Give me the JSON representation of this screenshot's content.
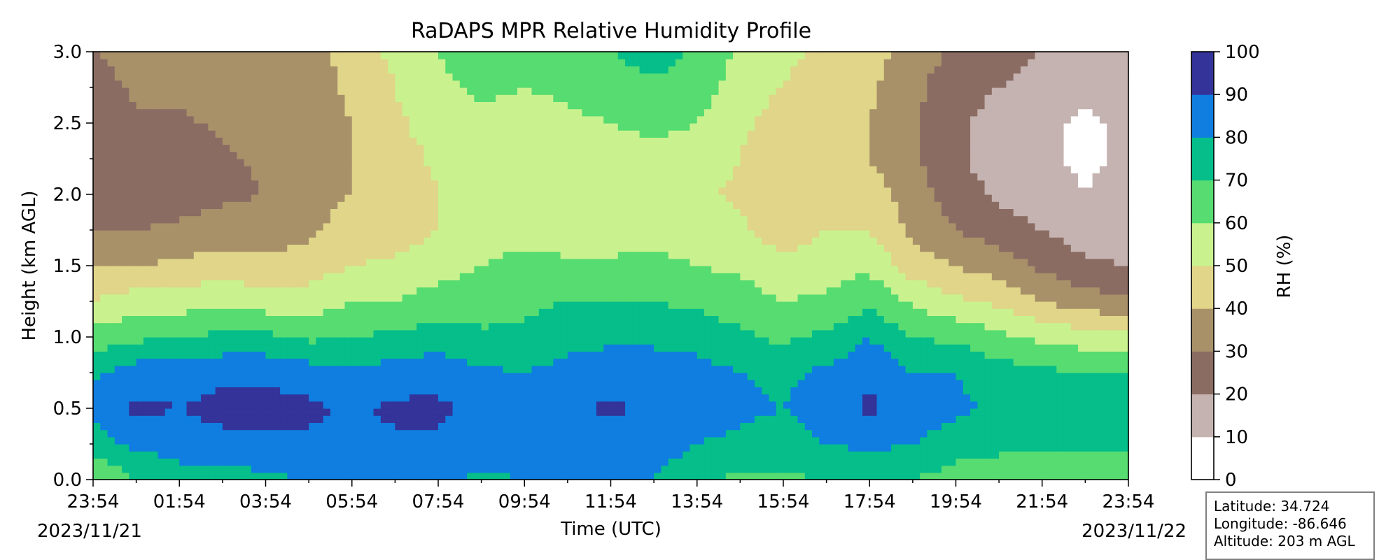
{
  "chart_data": {
    "type": "heatmap",
    "title": "RaDAPS MPR Relative Humidity Profile",
    "xlabel": "Time (UTC)",
    "ylabel": "Height (km AGL)",
    "x_tick_labels": [
      "23:54",
      "01:54",
      "03:54",
      "05:54",
      "07:54",
      "09:54",
      "11:54",
      "13:54",
      "15:54",
      "17:54",
      "19:54",
      "21:54",
      "23:54"
    ],
    "x_start_date": "2023/11/21",
    "x_end_date": "2023/11/22",
    "y_tick_labels": [
      "0.0",
      "0.5",
      "1.0",
      "1.5",
      "2.0",
      "2.5",
      "3.0"
    ],
    "ylim": [
      0.0,
      3.0
    ],
    "colorbar": {
      "label": "RH (%)",
      "tick_labels": [
        "0",
        "10",
        "20",
        "30",
        "40",
        "50",
        "60",
        "70",
        "80",
        "90",
        "100"
      ],
      "levels": [
        0,
        10,
        20,
        30,
        40,
        50,
        60,
        70,
        80,
        90,
        100
      ],
      "colors": [
        "#ffffff",
        "#c4b3b0",
        "#8b6c63",
        "#a89169",
        "#e0d588",
        "#c9f28f",
        "#56dc71",
        "#05be8a",
        "#0f7ee0",
        "#333399"
      ]
    },
    "rh_profiles_by_hour": {
      "heights_km": [
        0.0,
        0.25,
        0.5,
        0.75,
        1.0,
        1.25,
        1.5,
        1.75,
        2.0,
        2.25,
        2.5,
        2.75,
        3.0
      ],
      "profiles": [
        [
          60,
          75,
          83,
          78,
          65,
          50,
          40,
          30,
          22,
          22,
          22,
          25,
          30
        ],
        [
          70,
          82,
          92,
          85,
          68,
          55,
          40,
          30,
          25,
          25,
          28,
          32,
          35
        ],
        [
          75,
          85,
          90,
          86,
          70,
          55,
          42,
          32,
          25,
          25,
          28,
          32,
          35
        ],
        [
          75,
          87,
          93,
          88,
          72,
          58,
          45,
          35,
          28,
          28,
          32,
          35,
          35
        ],
        [
          78,
          87,
          93,
          88,
          72,
          55,
          42,
          35,
          30,
          32,
          35,
          35,
          35
        ],
        [
          80,
          88,
          92,
          85,
          68,
          55,
          45,
          38,
          35,
          35,
          35,
          35,
          35
        ],
        [
          85,
          88,
          88,
          82,
          70,
          60,
          50,
          45,
          40,
          40,
          40,
          42,
          45
        ],
        [
          83,
          88,
          92,
          85,
          72,
          60,
          52,
          45,
          42,
          45,
          48,
          50,
          52
        ],
        [
          83,
          88,
          92,
          86,
          75,
          65,
          55,
          50,
          50,
          52,
          55,
          58,
          60
        ],
        [
          78,
          85,
          88,
          82,
          72,
          65,
          60,
          58,
          55,
          55,
          58,
          62,
          65
        ],
        [
          80,
          85,
          85,
          80,
          72,
          68,
          62,
          58,
          55,
          55,
          55,
          60,
          65
        ],
        [
          80,
          85,
          88,
          84,
          76,
          70,
          62,
          55,
          50,
          52,
          58,
          62,
          68
        ],
        [
          82,
          86,
          92,
          86,
          78,
          70,
          62,
          55,
          52,
          55,
          60,
          65,
          70
        ],
        [
          80,
          85,
          88,
          85,
          78,
          70,
          62,
          58,
          55,
          58,
          62,
          68,
          75
        ],
        [
          72,
          80,
          85,
          84,
          76,
          68,
          60,
          55,
          52,
          55,
          60,
          65,
          68
        ],
        [
          68,
          78,
          82,
          80,
          72,
          65,
          58,
          52,
          48,
          50,
          52,
          55,
          58
        ],
        [
          68,
          75,
          80,
          78,
          68,
          60,
          52,
          45,
          42,
          42,
          45,
          50,
          52
        ],
        [
          70,
          80,
          85,
          82,
          72,
          62,
          55,
          50,
          45,
          42,
          42,
          45,
          48
        ],
        [
          72,
          82,
          92,
          88,
          80,
          68,
          58,
          50,
          45,
          40,
          40,
          42,
          45
        ],
        [
          70,
          80,
          85,
          80,
          70,
          58,
          45,
          38,
          35,
          32,
          32,
          32,
          35
        ],
        [
          65,
          75,
          82,
          80,
          68,
          52,
          40,
          30,
          25,
          22,
          22,
          25,
          28
        ],
        [
          65,
          72,
          78,
          75,
          62,
          48,
          35,
          25,
          18,
          15,
          15,
          20,
          25
        ],
        [
          65,
          72,
          78,
          72,
          58,
          40,
          28,
          20,
          15,
          12,
          12,
          15,
          20
        ],
        [
          60,
          72,
          78,
          70,
          55,
          35,
          22,
          15,
          10,
          8,
          8,
          12,
          18
        ],
        [
          60,
          72,
          80,
          72,
          52,
          32,
          20,
          15,
          15,
          12,
          12,
          15,
          18
        ]
      ]
    }
  },
  "info": {
    "latitude": "Latitude: 34.724",
    "longitude": "Longitude: -86.646",
    "altitude": "Altitude: 203 m AGL"
  }
}
